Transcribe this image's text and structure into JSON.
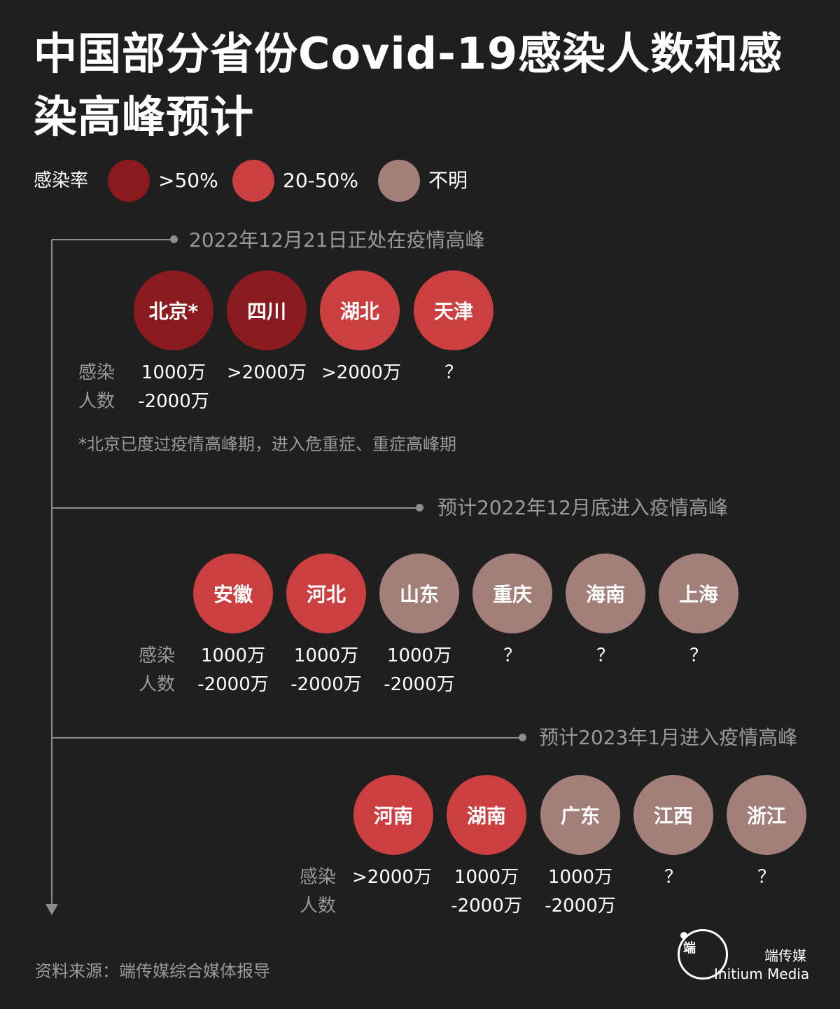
{
  "title": "中国部分省份Covid-19感染人数和感染高峰预计",
  "legend": {
    "label": "感染率",
    "items": [
      {
        "text": ">50%",
        "color": "#8b1a1e"
      },
      {
        "text": "20-50%",
        "color": "#cc3f40"
      },
      {
        "text": "不明",
        "color": "#a27f79"
      }
    ]
  },
  "row_label": "感染\n人数",
  "phases": [
    {
      "label": "2022年12月21日正处在疫情高峰",
      "provinces": [
        {
          "name": "北京*",
          "infected": "1000万\n-2000万",
          "rate": ">50%",
          "color": "#8b1a1e"
        },
        {
          "name": "四川",
          "infected": ">2000万",
          "rate": ">50%",
          "color": "#8b1a1e"
        },
        {
          "name": "湖北",
          "infected": ">2000万",
          "rate": "20-50%",
          "color": "#cc3f40"
        },
        {
          "name": "天津",
          "infected": "？",
          "rate": "20-50%",
          "color": "#cc3f40"
        }
      ]
    },
    {
      "label": "预计2022年12月底进入疫情高峰",
      "provinces": [
        {
          "name": "安徽",
          "infected": "1000万\n-2000万",
          "rate": "20-50%",
          "color": "#cc3f40"
        },
        {
          "name": "河北",
          "infected": "1000万\n-2000万",
          "rate": "20-50%",
          "color": "#cc3f40"
        },
        {
          "name": "山东",
          "infected": "1000万\n-2000万",
          "rate": "不明",
          "color": "#a27f79"
        },
        {
          "name": "重庆",
          "infected": "？",
          "rate": "不明",
          "color": "#a27f79"
        },
        {
          "name": "海南",
          "infected": "？",
          "rate": "不明",
          "color": "#a27f79"
        },
        {
          "name": "上海",
          "infected": "？",
          "rate": "不明",
          "color": "#a27f79"
        }
      ]
    },
    {
      "label": "预计2023年1月进入疫情高峰",
      "provinces": [
        {
          "name": "河南",
          "infected": ">2000万",
          "rate": "20-50%",
          "color": "#cc3f40"
        },
        {
          "name": "湖南",
          "infected": "1000万\n-2000万",
          "rate": "20-50%",
          "color": "#cc3f40"
        },
        {
          "name": "广东",
          "infected": "1000万\n-2000万",
          "rate": "不明",
          "color": "#a27f79"
        },
        {
          "name": "江西",
          "infected": "？",
          "rate": "不明",
          "color": "#a27f79"
        },
        {
          "name": "浙江",
          "infected": "？",
          "rate": "不明",
          "color": "#a27f79"
        }
      ]
    }
  ],
  "note": "*北京已度过疫情高峰期，进入危重症、重症高峰期",
  "source": "资料来源：端传媒综合媒体报导",
  "brand": {
    "cn": "端传媒",
    "en": "Initium Media",
    "logo_glyph": "端"
  }
}
